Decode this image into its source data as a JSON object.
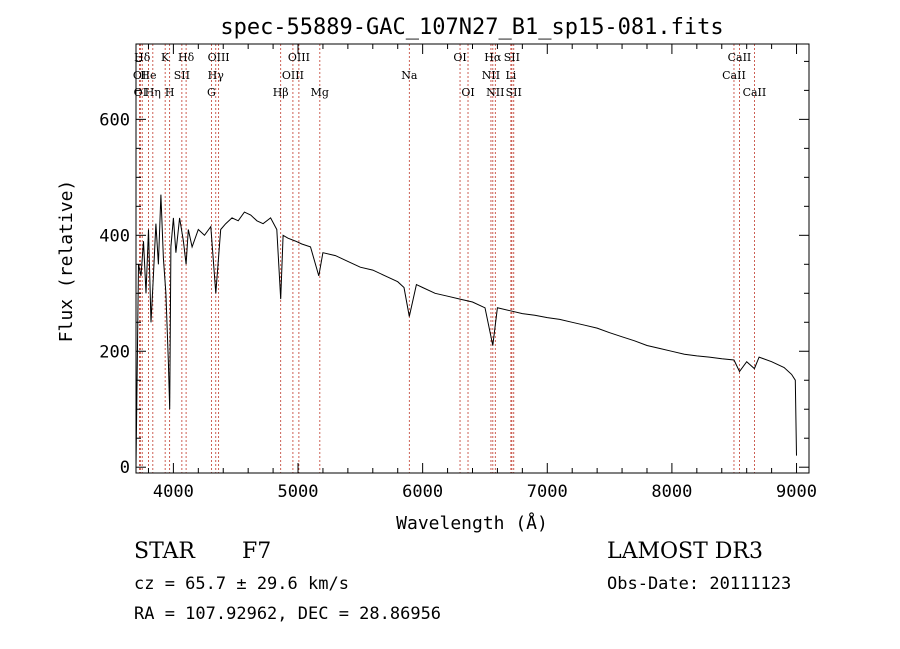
{
  "chart_data": {
    "type": "line",
    "title": "spec-55889-GAC_107N27_B1_sp15-081.fits",
    "xlabel": "Wavelength (Å)",
    "ylabel": "Flux (relative)",
    "xlim": [
      3700,
      9100
    ],
    "ylim": [
      -10,
      730
    ],
    "xticks": [
      4000,
      5000,
      6000,
      7000,
      8000,
      9000
    ],
    "yticks": [
      0,
      200,
      400,
      600
    ],
    "series": [
      {
        "name": "flux",
        "x": [
          3700,
          3720,
          3740,
          3760,
          3780,
          3800,
          3820,
          3840,
          3860,
          3880,
          3900,
          3920,
          3940,
          3960,
          3970,
          3980,
          4000,
          4020,
          4050,
          4080,
          4102,
          4120,
          4150,
          4200,
          4250,
          4300,
          4340,
          4380,
          4420,
          4470,
          4520,
          4570,
          4620,
          4670,
          4720,
          4780,
          4830,
          4861,
          4880,
          4920,
          4980,
          5030,
          5100,
          5167,
          5200,
          5300,
          5400,
          5500,
          5600,
          5700,
          5800,
          5850,
          5893,
          5950,
          6000,
          6100,
          6200,
          6300,
          6400,
          6500,
          6563,
          6600,
          6700,
          6800,
          6900,
          7000,
          7100,
          7200,
          7300,
          7400,
          7500,
          7600,
          7700,
          7800,
          7900,
          8000,
          8100,
          8200,
          8300,
          8400,
          8498,
          8542,
          8600,
          8662,
          8700,
          8800,
          8900,
          8960,
          8990,
          9000
        ],
        "values": [
          0,
          350,
          330,
          390,
          300,
          410,
          250,
          330,
          420,
          350,
          470,
          360,
          300,
          180,
          100,
          380,
          430,
          370,
          430,
          390,
          350,
          410,
          380,
          410,
          400,
          415,
          300,
          410,
          420,
          430,
          425,
          440,
          435,
          425,
          420,
          430,
          410,
          290,
          400,
          395,
          390,
          385,
          380,
          330,
          370,
          365,
          355,
          345,
          340,
          330,
          320,
          310,
          260,
          315,
          310,
          300,
          295,
          290,
          285,
          275,
          210,
          275,
          270,
          265,
          262,
          258,
          255,
          250,
          245,
          240,
          232,
          225,
          218,
          210,
          205,
          200,
          195,
          192,
          190,
          187,
          185,
          165,
          182,
          170,
          190,
          182,
          172,
          160,
          150,
          20
        ]
      }
    ],
    "lines": [
      {
        "label": "Hδ",
        "x": 3750,
        "row": 0
      },
      {
        "label": "OI",
        "x": 3729,
        "row": 1
      },
      {
        "label": "OI",
        "x": 3735,
        "row": 2
      },
      {
        "label": "He",
        "x": 3800,
        "row": 1
      },
      {
        "label": "Hη",
        "x": 3835,
        "row": 2
      },
      {
        "label": "K",
        "x": 3934,
        "row": 0
      },
      {
        "label": "H",
        "x": 3970,
        "row": 2
      },
      {
        "label": "SII",
        "x": 4068,
        "row": 1
      },
      {
        "label": "Hδ",
        "x": 4102,
        "row": 0
      },
      {
        "label": "OIII",
        "x": 4363,
        "row": 0
      },
      {
        "label": "Hγ",
        "x": 4340,
        "row": 1
      },
      {
        "label": "G",
        "x": 4305,
        "row": 2
      },
      {
        "label": "Hβ",
        "x": 4861,
        "row": 2
      },
      {
        "label": "OIII",
        "x": 5007,
        "row": 0
      },
      {
        "label": "OIII",
        "x": 4959,
        "row": 1
      },
      {
        "label": "Mg",
        "x": 5175,
        "row": 2
      },
      {
        "label": "Na",
        "x": 5893,
        "row": 1
      },
      {
        "label": "OI",
        "x": 6300,
        "row": 0
      },
      {
        "label": "OI",
        "x": 6364,
        "row": 2
      },
      {
        "label": "Hα",
        "x": 6563,
        "row": 0
      },
      {
        "label": "NII",
        "x": 6548,
        "row": 1
      },
      {
        "label": "NII",
        "x": 6583,
        "row": 2
      },
      {
        "label": "SII",
        "x": 6716,
        "row": 0
      },
      {
        "label": "Li",
        "x": 6708,
        "row": 1
      },
      {
        "label": "SII",
        "x": 6731,
        "row": 2
      },
      {
        "label": "CaII",
        "x": 8542,
        "row": 0
      },
      {
        "label": "CaII",
        "x": 8498,
        "row": 1
      },
      {
        "label": "CaII",
        "x": 8662,
        "row": 2
      }
    ]
  },
  "footer": {
    "class": "STAR",
    "subclass": "F7",
    "cz": "cz = 65.7 ± 29.6 km/s",
    "coords": "RA = 107.92962, DEC =  28.86956",
    "survey": "LAMOST DR3",
    "obsdate": "Obs-Date: 20111123"
  }
}
